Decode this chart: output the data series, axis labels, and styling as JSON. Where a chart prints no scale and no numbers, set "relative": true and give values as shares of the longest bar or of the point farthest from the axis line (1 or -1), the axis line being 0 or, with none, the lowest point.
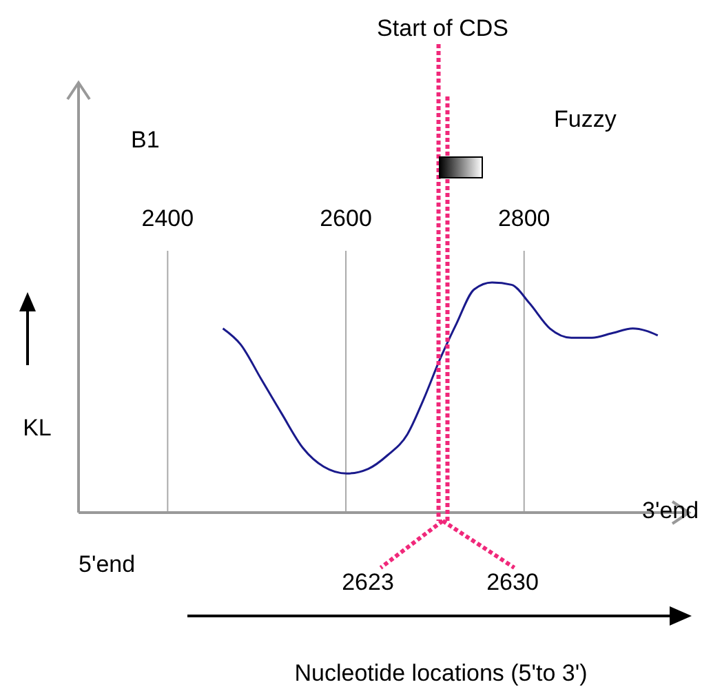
{
  "chart_data": {
    "type": "line",
    "relative": true,
    "ylabel": "KL",
    "x": [
      2462,
      2482,
      2505,
      2528,
      2552,
      2575,
      2601,
      2625,
      2647,
      2669,
      2687,
      2706,
      2724,
      2744,
      2764,
      2786,
      2806,
      2829,
      2853,
      2876,
      2899,
      2922,
      2937,
      2950
    ],
    "series": [
      {
        "color": "#1a1a8c",
        "values": [
          0.8,
          0.73,
          0.58,
          0.43,
          0.28,
          0.2,
          0.17,
          0.19,
          0.25,
          0.34,
          0.49,
          0.67,
          0.82,
          0.97,
          1,
          0.99,
          0.91,
          0.8,
          0.76,
          0.76,
          0.78,
          0.8,
          0.79,
          0.77
        ]
      }
    ],
    "xlim": [
      2300,
      2985
    ],
    "xticks": [
      2400,
      2600,
      2800
    ],
    "grid": "x",
    "marker": "none",
    "line_style": "solid",
    "ref_lines": [
      {
        "axis": "x",
        "value": 2704,
        "label": "Start of CDS",
        "color": "#f0287a",
        "line_style": "dotted"
      },
      {
        "axis": "x",
        "value": 2714,
        "color": "#f0287a",
        "line_style": "dotted"
      }
    ],
    "annotations": [
      "B1",
      "Fuzzy",
      "5'end",
      "3'end",
      "2623",
      "2630",
      "Nucleotide locations (5'to 3')"
    ]
  }
}
